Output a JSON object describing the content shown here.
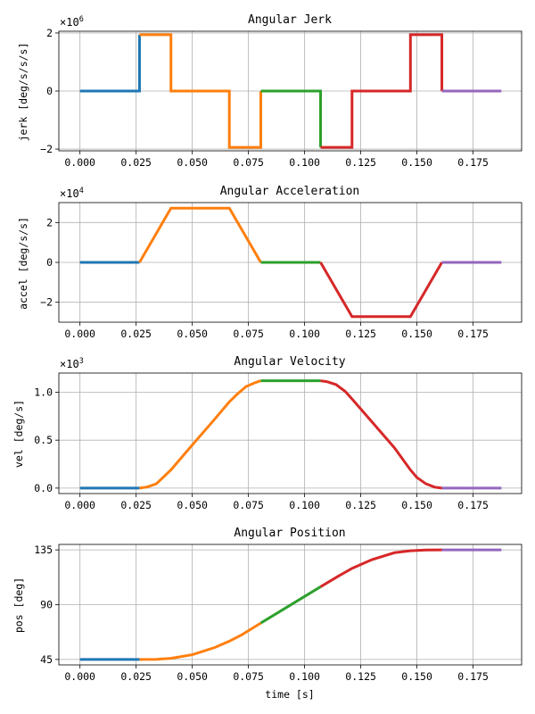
{
  "colors": {
    "blue": "#1f77b4",
    "orange": "#ff7f0e",
    "green": "#2ca02c",
    "red": "#d62728",
    "purple": "#9467bd",
    "grid": "#b0b0b0",
    "axis": "#000000"
  },
  "chart_data": [
    {
      "type": "line",
      "title": "Angular Jerk",
      "xlabel": "",
      "ylabel": "jerk [deg/s/s/s]",
      "scale_base": "×10",
      "scale_exp": "6",
      "xlim": [
        -0.0094,
        0.1966
      ],
      "ylim": [
        -2.06,
        2.06
      ],
      "grid": true,
      "xticks": [
        0,
        0.025,
        0.05,
        0.075,
        0.1,
        0.125,
        0.15,
        0.175
      ],
      "xtick_labels": [
        "0.000",
        "0.025",
        "0.050",
        "0.075",
        "0.100",
        "0.125",
        "0.150",
        "0.175"
      ],
      "yticks": [
        -2,
        0,
        2
      ],
      "ytick_labels": [
        "−2",
        "0",
        "2"
      ],
      "series": [
        {
          "color": "blue",
          "x": [
            0,
            0.0265,
            0.0265
          ],
          "y": [
            0,
            0,
            1.94
          ]
        },
        {
          "color": "orange",
          "x": [
            0.0265,
            0.0405,
            0.0405,
            0.0665,
            0.0665,
            0.0805,
            0.0805
          ],
          "y": [
            1.94,
            1.94,
            0,
            0,
            -1.94,
            -1.94,
            0
          ]
        },
        {
          "color": "green",
          "x": [
            0.0805,
            0.1071,
            0.1071
          ],
          "y": [
            0,
            0,
            -1.94
          ]
        },
        {
          "color": "red",
          "x": [
            0.1071,
            0.1211,
            0.1211,
            0.1471,
            0.1471,
            0.1611,
            0.1611
          ],
          "y": [
            -1.94,
            -1.94,
            0,
            0,
            1.94,
            1.94,
            0
          ]
        },
        {
          "color": "purple",
          "x": [
            0.1611,
            0.1876
          ],
          "y": [
            0,
            0
          ]
        }
      ]
    },
    {
      "type": "line",
      "title": "Angular Acceleration",
      "xlabel": "",
      "ylabel": "accel [deg/s/s]",
      "scale_base": "×10",
      "scale_exp": "4",
      "xlim": [
        -0.0094,
        0.1966
      ],
      "ylim": [
        -3.0,
        3.0
      ],
      "grid": true,
      "xticks": [
        0,
        0.025,
        0.05,
        0.075,
        0.1,
        0.125,
        0.15,
        0.175
      ],
      "xtick_labels": [
        "0.000",
        "0.025",
        "0.050",
        "0.075",
        "0.100",
        "0.125",
        "0.150",
        "0.175"
      ],
      "yticks": [
        -2,
        0,
        2
      ],
      "ytick_labels": [
        "−2",
        "0",
        "2"
      ],
      "series": [
        {
          "color": "blue",
          "x": [
            0,
            0.0265
          ],
          "y": [
            0,
            0
          ]
        },
        {
          "color": "orange",
          "x": [
            0.0265,
            0.0405,
            0.0665,
            0.0805
          ],
          "y": [
            0,
            2.72,
            2.72,
            0
          ]
        },
        {
          "color": "green",
          "x": [
            0.0805,
            0.1071
          ],
          "y": [
            0,
            0
          ]
        },
        {
          "color": "red",
          "x": [
            0.1071,
            0.1211,
            0.1471,
            0.1611
          ],
          "y": [
            0,
            -2.72,
            -2.72,
            0
          ]
        },
        {
          "color": "purple",
          "x": [
            0.1611,
            0.1876
          ],
          "y": [
            0,
            0
          ]
        }
      ]
    },
    {
      "type": "line",
      "title": "Angular Velocity",
      "xlabel": "",
      "ylabel": "vel [deg/s]",
      "scale_base": "×10",
      "scale_exp": "3",
      "xlim": [
        -0.0094,
        0.1966
      ],
      "ylim": [
        -0.057,
        1.2
      ],
      "grid": true,
      "xticks": [
        0,
        0.025,
        0.05,
        0.075,
        0.1,
        0.125,
        0.15,
        0.175
      ],
      "xtick_labels": [
        "0.000",
        "0.025",
        "0.050",
        "0.075",
        "0.100",
        "0.125",
        "0.150",
        "0.175"
      ],
      "yticks": [
        0,
        0.5,
        1.0
      ],
      "ytick_labels": [
        "0.0",
        "0.5",
        "1.0"
      ],
      "series": [
        {
          "color": "blue",
          "x": [
            0,
            0.0265
          ],
          "y": [
            0,
            0
          ]
        },
        {
          "color": "orange",
          "x": [
            0.0265,
            0.03,
            0.034,
            0.0405,
            0.05,
            0.06,
            0.0665,
            0.07,
            0.074,
            0.078,
            0.0805
          ],
          "y": [
            0,
            0.012,
            0.045,
            0.19,
            0.45,
            0.72,
            0.9,
            0.98,
            1.06,
            1.1,
            1.12
          ]
        },
        {
          "color": "green",
          "x": [
            0.0805,
            0.1071
          ],
          "y": [
            1.12,
            1.12
          ]
        },
        {
          "color": "red",
          "x": [
            0.1071,
            0.11,
            0.114,
            0.118,
            0.1211,
            0.13,
            0.14,
            0.1471,
            0.15,
            0.154,
            0.158,
            0.1611
          ],
          "y": [
            1.12,
            1.11,
            1.08,
            1.01,
            0.93,
            0.69,
            0.42,
            0.19,
            0.11,
            0.045,
            0.009,
            0
          ]
        },
        {
          "color": "purple",
          "x": [
            0.1611,
            0.1876
          ],
          "y": [
            0,
            0
          ]
        }
      ]
    },
    {
      "type": "line",
      "title": "Angular Position",
      "xlabel": "time [s]",
      "ylabel": "pos [deg]",
      "scale_base": "",
      "scale_exp": "",
      "xlim": [
        -0.0094,
        0.1966
      ],
      "ylim": [
        40.5,
        139.5
      ],
      "grid": true,
      "xticks": [
        0,
        0.025,
        0.05,
        0.075,
        0.1,
        0.125,
        0.15,
        0.175
      ],
      "xtick_labels": [
        "0.000",
        "0.025",
        "0.050",
        "0.075",
        "0.100",
        "0.125",
        "0.150",
        "0.175"
      ],
      "yticks": [
        45,
        90,
        135
      ],
      "ytick_labels": [
        "45",
        "90",
        "135"
      ],
      "series": [
        {
          "color": "blue",
          "x": [
            0,
            0.0265
          ],
          "y": [
            45,
            45
          ]
        },
        {
          "color": "orange",
          "x": [
            0.0265,
            0.034,
            0.0405,
            0.05,
            0.06,
            0.0665,
            0.072,
            0.0805
          ],
          "y": [
            45,
            45.1,
            45.9,
            48.9,
            54.8,
            60.0,
            65.2,
            74.9
          ]
        },
        {
          "color": "green",
          "x": [
            0.0805,
            0.1071
          ],
          "y": [
            74.9,
            104.7
          ]
        },
        {
          "color": "red",
          "x": [
            0.1071,
            0.115,
            0.1211,
            0.13,
            0.14,
            0.1471,
            0.154,
            0.1611
          ],
          "y": [
            104.7,
            113.4,
            119.8,
            127.0,
            132.7,
            134.3,
            134.9,
            135
          ]
        },
        {
          "color": "purple",
          "x": [
            0.1611,
            0.1876
          ],
          "y": [
            135,
            135
          ]
        }
      ]
    }
  ]
}
